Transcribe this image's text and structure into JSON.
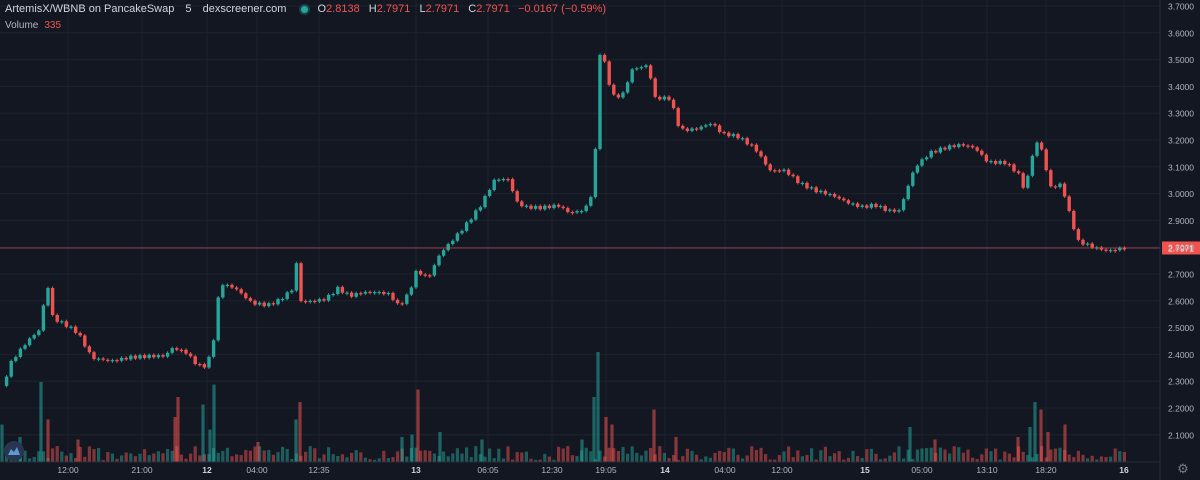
{
  "legend": {
    "title": "ArtemisX/WBNB on PancakeSwap",
    "interval": "5",
    "source": "dexscreener.com",
    "open_label": "O",
    "open": "2.8138",
    "high_label": "H",
    "high": "2.7971",
    "low_label": "L",
    "low": "2.7971",
    "close_label": "C",
    "close": "2.7971",
    "change": "−0.0167 (−0.59%)"
  },
  "volume_legend": {
    "label": "Volume",
    "value": "335"
  },
  "colors": {
    "background": "#131722",
    "up": "#26a69a",
    "down": "#ef5350",
    "grid": "#1e222d",
    "axis_text": "#b2b5be"
  },
  "icons": {
    "logo": "dexscreener-logo-icon",
    "settings": "gear-icon"
  },
  "chart_data": {
    "type": "candlestick",
    "grid": true,
    "ylim": [
      2.0,
      3.7
    ],
    "y_ticks": [
      "3.7000",
      "3.6000",
      "3.5000",
      "3.4000",
      "3.3000",
      "3.2000",
      "3.1000",
      "3.0000",
      "2.9000",
      "2.8000",
      "2.7000",
      "2.6000",
      "2.5000",
      "2.4000",
      "2.3000",
      "2.2000",
      "2.1000"
    ],
    "x_ticks": [
      "12:00",
      "21:00",
      "12",
      "04:00",
      "12:35",
      "13",
      "06:05",
      "12:30",
      "19:05",
      "14",
      "04:00",
      "12:00",
      "15",
      "05:00",
      "13:10",
      "18:20",
      "16"
    ],
    "bold_ticks": [
      "12",
      "13",
      "14",
      "15",
      "16"
    ],
    "last_price": "2.7971",
    "price_path": [
      [
        0,
        2.26
      ],
      [
        12,
        2.38
      ],
      [
        28,
        2.45
      ],
      [
        40,
        2.49
      ],
      [
        47,
        2.67
      ],
      [
        53,
        2.53
      ],
      [
        65,
        2.51
      ],
      [
        78,
        2.48
      ],
      [
        92,
        2.39
      ],
      [
        112,
        2.38
      ],
      [
        130,
        2.39
      ],
      [
        150,
        2.39
      ],
      [
        165,
        2.39
      ],
      [
        172,
        2.42
      ],
      [
        185,
        2.41
      ],
      [
        198,
        2.36
      ],
      [
        205,
        2.36
      ],
      [
        212,
        2.41
      ],
      [
        220,
        2.67
      ],
      [
        235,
        2.65
      ],
      [
        252,
        2.59
      ],
      [
        268,
        2.58
      ],
      [
        280,
        2.6
      ],
      [
        292,
        2.64
      ],
      [
        297,
        2.75
      ],
      [
        300,
        2.6
      ],
      [
        312,
        2.6
      ],
      [
        325,
        2.61
      ],
      [
        338,
        2.65
      ],
      [
        350,
        2.62
      ],
      [
        362,
        2.63
      ],
      [
        375,
        2.63
      ],
      [
        390,
        2.62
      ],
      [
        398,
        2.58
      ],
      [
        405,
        2.6
      ],
      [
        412,
        2.66
      ],
      [
        418,
        2.73
      ],
      [
        422,
        2.69
      ],
      [
        430,
        2.7
      ],
      [
        440,
        2.78
      ],
      [
        455,
        2.84
      ],
      [
        465,
        2.88
      ],
      [
        480,
        2.95
      ],
      [
        495,
        3.05
      ],
      [
        510,
        3.05
      ],
      [
        515,
        2.97
      ],
      [
        525,
        2.95
      ],
      [
        540,
        2.95
      ],
      [
        558,
        2.96
      ],
      [
        570,
        2.93
      ],
      [
        585,
        2.94
      ],
      [
        592,
        3.0
      ],
      [
        598,
        3.28
      ],
      [
        600,
        3.52
      ],
      [
        605,
        3.48
      ],
      [
        612,
        3.36
      ],
      [
        622,
        3.36
      ],
      [
        632,
        3.46
      ],
      [
        638,
        3.47
      ],
      [
        648,
        3.48
      ],
      [
        655,
        3.36
      ],
      [
        670,
        3.36
      ],
      [
        680,
        3.24
      ],
      [
        695,
        3.24
      ],
      [
        712,
        3.26
      ],
      [
        722,
        3.22
      ],
      [
        738,
        3.21
      ],
      [
        755,
        3.17
      ],
      [
        770,
        3.09
      ],
      [
        785,
        3.09
      ],
      [
        800,
        3.04
      ],
      [
        815,
        3.01
      ],
      [
        832,
        2.99
      ],
      [
        850,
        2.96
      ],
      [
        862,
        2.95
      ],
      [
        875,
        2.96
      ],
      [
        888,
        2.94
      ],
      [
        900,
        2.94
      ],
      [
        905,
        3.0
      ],
      [
        915,
        3.1
      ],
      [
        930,
        3.15
      ],
      [
        948,
        3.17
      ],
      [
        962,
        3.18
      ],
      [
        975,
        3.17
      ],
      [
        988,
        3.12
      ],
      [
        1005,
        3.12
      ],
      [
        1018,
        3.08
      ],
      [
        1024,
        3.02
      ],
      [
        1030,
        3.09
      ],
      [
        1035,
        3.2
      ],
      [
        1042,
        3.16
      ],
      [
        1050,
        3.02
      ],
      [
        1062,
        3.03
      ],
      [
        1068,
        2.94
      ],
      [
        1078,
        2.82
      ],
      [
        1095,
        2.8
      ],
      [
        1108,
        2.79
      ],
      [
        1122,
        2.8
      ],
      [
        1127,
        2.8
      ]
    ],
    "volume_spikes": [
      [
        2,
        0.15,
        "up"
      ],
      [
        20,
        0.1,
        "up"
      ],
      [
        41,
        0.32,
        "up"
      ],
      [
        48,
        0.17,
        "down"
      ],
      [
        78,
        0.09,
        "down"
      ],
      [
        175,
        0.18,
        "down"
      ],
      [
        178,
        0.26,
        "down"
      ],
      [
        203,
        0.23,
        "up"
      ],
      [
        210,
        0.13,
        "up"
      ],
      [
        214,
        0.31,
        "up"
      ],
      [
        258,
        0.08,
        "down"
      ],
      [
        296,
        0.17,
        "up"
      ],
      [
        300,
        0.24,
        "down"
      ],
      [
        402,
        0.1,
        "up"
      ],
      [
        412,
        0.11,
        "up"
      ],
      [
        418,
        0.29,
        "down"
      ],
      [
        440,
        0.12,
        "up"
      ],
      [
        482,
        0.09,
        "up"
      ],
      [
        582,
        0.09,
        "up"
      ],
      [
        594,
        0.26,
        "up"
      ],
      [
        598,
        0.44,
        "up"
      ],
      [
        606,
        0.18,
        "down"
      ],
      [
        612,
        0.15,
        "down"
      ],
      [
        654,
        0.21,
        "down"
      ],
      [
        676,
        0.1,
        "down"
      ],
      [
        910,
        0.14,
        "up"
      ],
      [
        935,
        0.09,
        "down"
      ],
      [
        1018,
        0.1,
        "down"
      ],
      [
        1030,
        0.14,
        "up"
      ],
      [
        1035,
        0.24,
        "up"
      ],
      [
        1041,
        0.21,
        "down"
      ],
      [
        1048,
        0.12,
        "down"
      ],
      [
        1065,
        0.15,
        "down"
      ]
    ]
  }
}
